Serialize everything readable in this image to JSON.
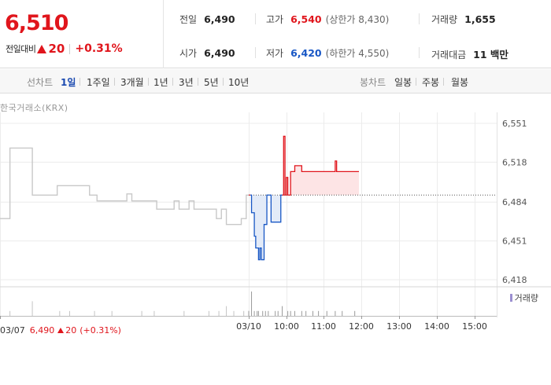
{
  "quote": {
    "price": "6,510",
    "change_label": "전일대비",
    "change_abs": "20",
    "change_pct": "+0.31%",
    "stats": {
      "prev_close": {
        "label": "전일",
        "value": "6,490"
      },
      "open": {
        "label": "시가",
        "value": "6,490"
      },
      "high": {
        "label": "고가",
        "value": "6,540",
        "sub": "(상한가 8,430)"
      },
      "low": {
        "label": "저가",
        "value": "6,420",
        "sub": "(하한가 4,550)"
      },
      "volume": {
        "label": "거래량",
        "value": "1,655"
      },
      "amount": {
        "label": "거래대금",
        "value": "11 백만"
      }
    }
  },
  "period_bar": {
    "line_label": "선차트",
    "line_periods": [
      "1일",
      "1주일",
      "3개월",
      "1년",
      "3년",
      "5년",
      "10년"
    ],
    "active_period": "1일",
    "candle_label": "봉차트",
    "candle_periods": [
      "일봉",
      "주봉",
      "월봉"
    ]
  },
  "chart": {
    "exchange": "한국거래소(KRX)",
    "volume_legend": "거래량",
    "colors": {
      "up": "#e0151c",
      "down": "#1857c5",
      "up_fill": "#fde4e5",
      "down_fill": "#e3ebf8",
      "prev_day": "#c8c8c8"
    },
    "footer": {
      "date": "03/07",
      "price": "6,490",
      "change": "20",
      "pct": "(+0.31%)"
    }
  },
  "chart_data": {
    "type": "line",
    "ylim": [
      6418,
      6551
    ],
    "yticks": [
      6551,
      6518,
      6484,
      6451,
      6418
    ],
    "ytick_labels": [
      "6,551",
      "6,518",
      "6,484",
      "6,451",
      "6,418"
    ],
    "xtick_labels": [
      "03/07",
      "03/10",
      "10:00",
      "11:00",
      "12:00",
      "13:00",
      "14:00",
      "15:00"
    ],
    "baseline": 6490,
    "series": [
      {
        "values": [
          6470,
          6470,
          6470,
          6470,
          6530,
          6530,
          6530,
          6530,
          6530,
          6530,
          6530,
          6530,
          6530,
          6490,
          6490,
          6490,
          6490,
          6490,
          6490,
          6490,
          6490,
          6490,
          6490,
          6498,
          6498,
          6498,
          6498,
          6498,
          6498,
          6498,
          6498,
          6498,
          6498,
          6498,
          6498,
          6498,
          6490,
          6490,
          6490,
          6485,
          6485,
          6485,
          6485,
          6485,
          6485,
          6485,
          6485,
          6485,
          6485,
          6485,
          6485,
          6491,
          6491,
          6485,
          6485,
          6485,
          6485,
          6485,
          6485,
          6485,
          6485,
          6485,
          6485,
          6478,
          6478,
          6478,
          6478,
          6478,
          6478,
          6478,
          6485,
          6485,
          6478,
          6478,
          6478,
          6478,
          6485,
          6485,
          6478,
          6478,
          6478,
          6478,
          6478,
          6478,
          6478,
          6478,
          6478,
          6470,
          6470,
          6478,
          6478,
          6465,
          6465,
          6465,
          6465,
          6465,
          6465,
          6470,
          6470,
          6490,
          6490
        ]
      },
      {
        "values": [
          6490,
          6490,
          6475,
          6475,
          6455,
          6445,
          6445,
          6435,
          6445,
          6435,
          6435,
          6465,
          6465,
          6490,
          6490,
          6490,
          6467,
          6467,
          6467,
          6467,
          6467,
          6467,
          6467,
          6490,
          6490,
          6540,
          6490,
          6505,
          6490,
          6490,
          6510,
          6510,
          6510,
          6515,
          6515,
          6515,
          6515,
          6515,
          6510,
          6510,
          6510,
          6510,
          6510,
          6510,
          6510,
          6510,
          6510,
          6510,
          6510,
          6510,
          6510,
          6510,
          6510,
          6510,
          6510,
          6510,
          6510,
          6510,
          6510,
          6510,
          6510,
          6510,
          6519,
          6510,
          6510,
          6510,
          6510,
          6510,
          6510,
          6510,
          6510,
          6510,
          6510,
          6510,
          6510,
          6510,
          6510,
          6510,
          6510,
          6510
        ]
      }
    ],
    "volume": {
      "prev_day": [
        0,
        0,
        0,
        0,
        1,
        0,
        0,
        0,
        0,
        0,
        0,
        0,
        0,
        3,
        0,
        0,
        0,
        0,
        0,
        0,
        0,
        0,
        0,
        0,
        1,
        0,
        0,
        0,
        1,
        0,
        0,
        0,
        0,
        0,
        0,
        0,
        0,
        0,
        1,
        0,
        0,
        0,
        0,
        0,
        0,
        1,
        0,
        0,
        0,
        0,
        0,
        0,
        0,
        0,
        0,
        0,
        0,
        1,
        0,
        0,
        0,
        0,
        1,
        0,
        0,
        0,
        0,
        0,
        0,
        0,
        0,
        0,
        0,
        0,
        1,
        0,
        0,
        0,
        0,
        0,
        0,
        0,
        0,
        0,
        1,
        0,
        0,
        0,
        1,
        0,
        0,
        2,
        0,
        0,
        1,
        0,
        0,
        0,
        1,
        0,
        1
      ],
      "today": [
        1,
        0,
        5,
        0,
        1,
        0,
        1,
        1,
        0,
        0,
        1,
        0,
        1,
        0,
        1,
        0,
        0,
        0,
        0,
        1,
        0,
        1,
        0,
        0,
        2,
        0,
        0,
        0,
        1,
        0,
        1,
        0,
        0,
        1,
        0,
        0,
        0,
        0,
        1,
        0,
        0,
        1,
        0,
        0,
        0,
        0,
        1,
        0,
        0,
        0,
        1,
        0,
        0,
        0,
        0,
        0,
        1,
        0,
        0,
        0,
        0,
        0,
        1,
        0,
        0,
        0,
        0,
        1,
        0,
        0,
        0,
        0,
        0,
        0,
        0,
        0,
        1,
        0,
        0,
        0
      ]
    }
  }
}
